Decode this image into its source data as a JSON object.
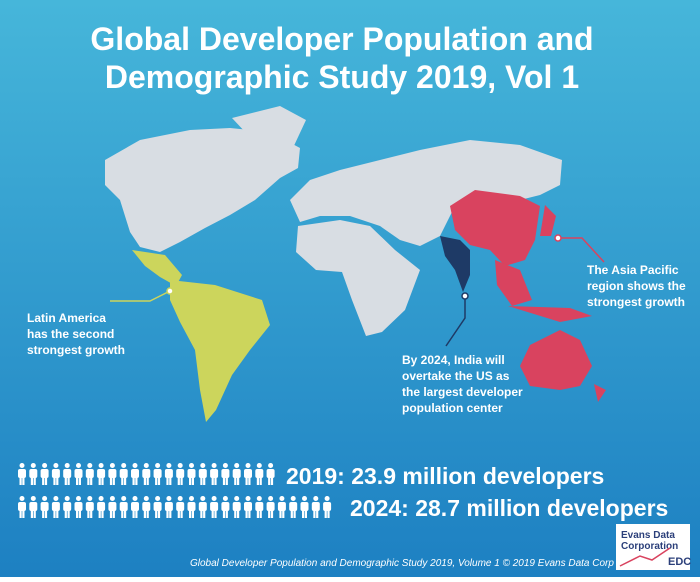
{
  "header": {
    "title_lines": [
      "Global Developer Population and",
      "Demographic Study 2019, Vol 1"
    ]
  },
  "annotations": {
    "latin_america": [
      "Latin America",
      "has the second",
      "strongest growth"
    ],
    "india": [
      "By 2024, India will",
      "overtake the US as",
      "the largest developer",
      "population center"
    ],
    "asia_pacific": [
      "The Asia Pacific",
      "region shows the",
      "strongest growth"
    ]
  },
  "stats": [
    "2019: 23.9 million developers",
    "2024: 28.7 million developers"
  ],
  "footer": "Global Developer Population and Demographic Study 2019, Volume 1 © 2019 Evans Data Corp",
  "logo": {
    "lines": [
      "Evans Data",
      "Corporation"
    ],
    "mark": "EDC"
  }
}
